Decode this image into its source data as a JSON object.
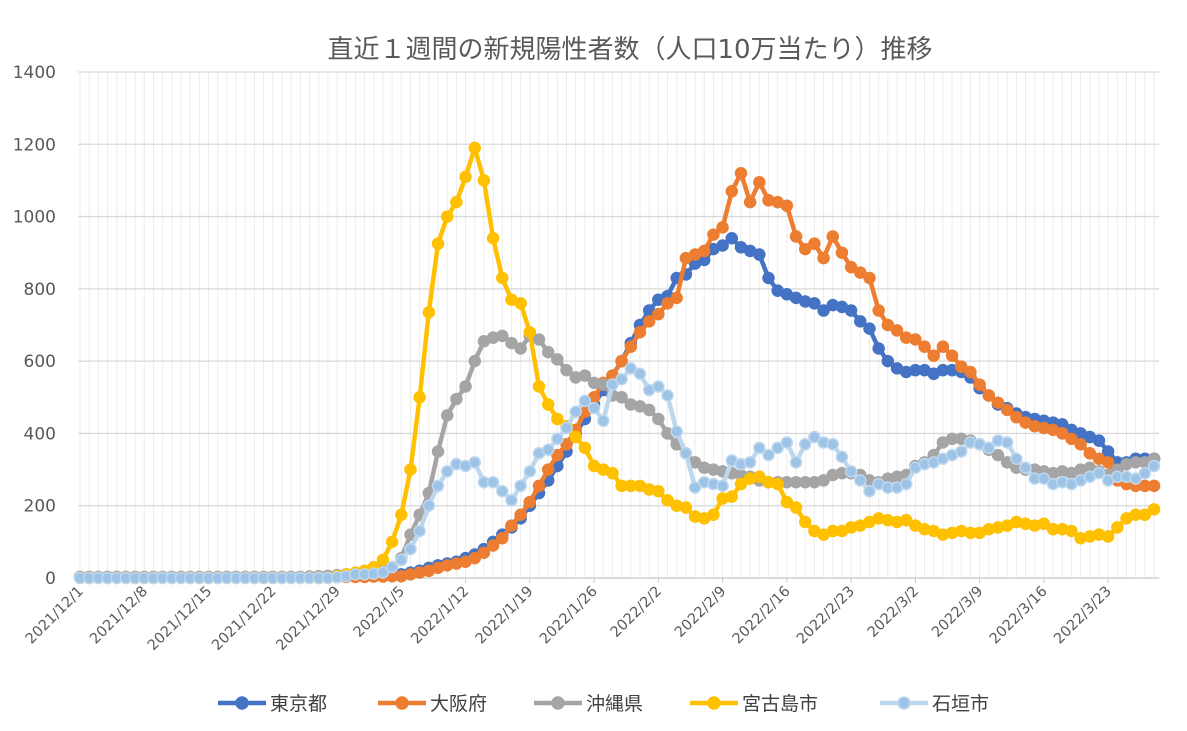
{
  "chart_data": {
    "type": "line",
    "title": "直近１週間の新規陽性者数（人口10万当たり）推移",
    "xlabel": "",
    "ylabel": "",
    "ylim": [
      0,
      1400
    ],
    "y_ticks": [
      0,
      200,
      400,
      600,
      800,
      1000,
      1200,
      1400
    ],
    "x_start": "2021/12/1",
    "x_end": "2022/3/28",
    "x_interval_days": 1,
    "x_tick_labels": [
      "2021/12/1",
      "2021/12/8",
      "2021/12/15",
      "2021/12/22",
      "2021/12/29",
      "2022/1/5",
      "2022/1/12",
      "2022/1/19",
      "2022/1/26",
      "2022/2/2",
      "2022/2/9",
      "2022/2/16",
      "2022/2/23",
      "2022/3/2",
      "2022/3/9",
      "2022/3/16",
      "2022/3/23"
    ],
    "x_tick_step_days": 7,
    "grid": true,
    "legend_position": "bottom",
    "series": [
      {
        "name": "東京都",
        "color": "#4472c4",
        "marker_fill": "#4472c4",
        "values": [
          2,
          2,
          2,
          2,
          2,
          2,
          2,
          2,
          2,
          2,
          2,
          2,
          2,
          2,
          2,
          2,
          2,
          2,
          2,
          2,
          2,
          2,
          2,
          2,
          2,
          3,
          3,
          4,
          4,
          5,
          5,
          6,
          7,
          8,
          9,
          10,
          15,
          20,
          28,
          35,
          40,
          45,
          55,
          65,
          80,
          100,
          120,
          140,
          165,
          200,
          235,
          270,
          310,
          350,
          400,
          440,
          480,
          520,
          560,
          600,
          650,
          700,
          740,
          770,
          780,
          830,
          840,
          870,
          880,
          910,
          920,
          940,
          915,
          905,
          895,
          830,
          795,
          785,
          775,
          765,
          760,
          740,
          755,
          750,
          740,
          710,
          690,
          635,
          600,
          580,
          570,
          575,
          575,
          565,
          575,
          575,
          570,
          555,
          525,
          505,
          480,
          470,
          455,
          445,
          440,
          435,
          430,
          425,
          410,
          400,
          390,
          380,
          350,
          320,
          320,
          330,
          330,
          330
        ]
      },
      {
        "name": "大阪府",
        "color": "#ed7d31",
        "marker_fill": "#ed7d31",
        "values": [
          1,
          1,
          1,
          1,
          1,
          1,
          1,
          1,
          1,
          1,
          1,
          1,
          1,
          1,
          1,
          1,
          1,
          1,
          1,
          1,
          1,
          1,
          1,
          1,
          1,
          1,
          2,
          2,
          2,
          3,
          3,
          3,
          4,
          4,
          5,
          5,
          10,
          15,
          20,
          28,
          35,
          40,
          45,
          55,
          70,
          90,
          110,
          145,
          175,
          210,
          255,
          300,
          340,
          370,
          410,
          460,
          500,
          540,
          560,
          600,
          640,
          680,
          710,
          730,
          760,
          775,
          885,
          895,
          905,
          950,
          970,
          1070,
          1120,
          1040,
          1095,
          1045,
          1040,
          1030,
          945,
          910,
          925,
          885,
          945,
          900,
          860,
          845,
          830,
          740,
          700,
          685,
          665,
          660,
          640,
          615,
          640,
          615,
          585,
          570,
          535,
          505,
          485,
          465,
          445,
          430,
          420,
          415,
          410,
          400,
          385,
          370,
          345,
          330,
          320,
          270,
          260,
          255,
          255,
          255
        ]
      },
      {
        "name": "沖縄県",
        "color": "#a5a5a5",
        "marker_fill": "#a5a5a5",
        "values": [
          3,
          3,
          3,
          3,
          3,
          3,
          3,
          3,
          3,
          3,
          3,
          3,
          3,
          3,
          3,
          3,
          3,
          3,
          3,
          3,
          3,
          3,
          3,
          3,
          3,
          4,
          5,
          6,
          8,
          10,
          12,
          15,
          20,
          25,
          30,
          55,
          120,
          175,
          235,
          350,
          450,
          495,
          530,
          600,
          655,
          665,
          670,
          650,
          635,
          670,
          660,
          625,
          605,
          575,
          555,
          560,
          540,
          535,
          505,
          500,
          480,
          475,
          465,
          440,
          400,
          370,
          345,
          320,
          305,
          300,
          295,
          290,
          285,
          280,
          270,
          265,
          265,
          265,
          265,
          265,
          265,
          270,
          285,
          290,
          290,
          285,
          270,
          265,
          275,
          280,
          285,
          310,
          320,
          340,
          375,
          385,
          385,
          380,
          370,
          355,
          340,
          320,
          305,
          300,
          300,
          295,
          290,
          295,
          290,
          300,
          305,
          295,
          285,
          300,
          315,
          320,
          320,
          330
        ]
      },
      {
        "name": "宮古島市",
        "color": "#ffc000",
        "marker_fill": "#ffc000",
        "values": [
          0,
          0,
          0,
          0,
          0,
          0,
          0,
          0,
          0,
          0,
          0,
          0,
          0,
          0,
          0,
          0,
          0,
          0,
          0,
          0,
          0,
          0,
          0,
          0,
          0,
          0,
          0,
          0,
          5,
          10,
          15,
          20,
          30,
          50,
          100,
          175,
          300,
          500,
          735,
          925,
          1000,
          1040,
          1110,
          1190,
          1100,
          940,
          830,
          770,
          760,
          680,
          530,
          480,
          440,
          420,
          390,
          360,
          310,
          300,
          290,
          255,
          255,
          255,
          245,
          240,
          215,
          200,
          195,
          170,
          165,
          175,
          220,
          225,
          260,
          275,
          280,
          265,
          260,
          210,
          195,
          155,
          130,
          120,
          130,
          130,
          140,
          145,
          155,
          165,
          160,
          155,
          160,
          145,
          135,
          130,
          120,
          125,
          130,
          125,
          125,
          135,
          140,
          145,
          155,
          150,
          145,
          150,
          135,
          135,
          130,
          110,
          115,
          120,
          115,
          140,
          165,
          175,
          175,
          190
        ]
      },
      {
        "name": "石垣市",
        "color": "#bdd7ee",
        "marker_fill": "#9dc3e6",
        "values": [
          0,
          0,
          0,
          0,
          0,
          0,
          0,
          0,
          0,
          0,
          0,
          0,
          0,
          0,
          0,
          0,
          0,
          0,
          0,
          0,
          0,
          0,
          0,
          0,
          0,
          0,
          0,
          0,
          2,
          5,
          10,
          10,
          12,
          15,
          30,
          50,
          80,
          130,
          200,
          255,
          295,
          315,
          310,
          320,
          265,
          265,
          240,
          215,
          255,
          295,
          345,
          355,
          385,
          415,
          460,
          490,
          470,
          435,
          535,
          550,
          580,
          565,
          520,
          530,
          505,
          405,
          345,
          250,
          265,
          260,
          255,
          325,
          315,
          320,
          360,
          340,
          360,
          375,
          320,
          370,
          390,
          375,
          370,
          335,
          295,
          270,
          240,
          260,
          250,
          250,
          260,
          305,
          315,
          320,
          330,
          340,
          350,
          375,
          370,
          360,
          380,
          375,
          330,
          305,
          275,
          275,
          260,
          265,
          260,
          270,
          280,
          290,
          270,
          280,
          280,
          275,
          290,
          310
        ]
      }
    ]
  }
}
